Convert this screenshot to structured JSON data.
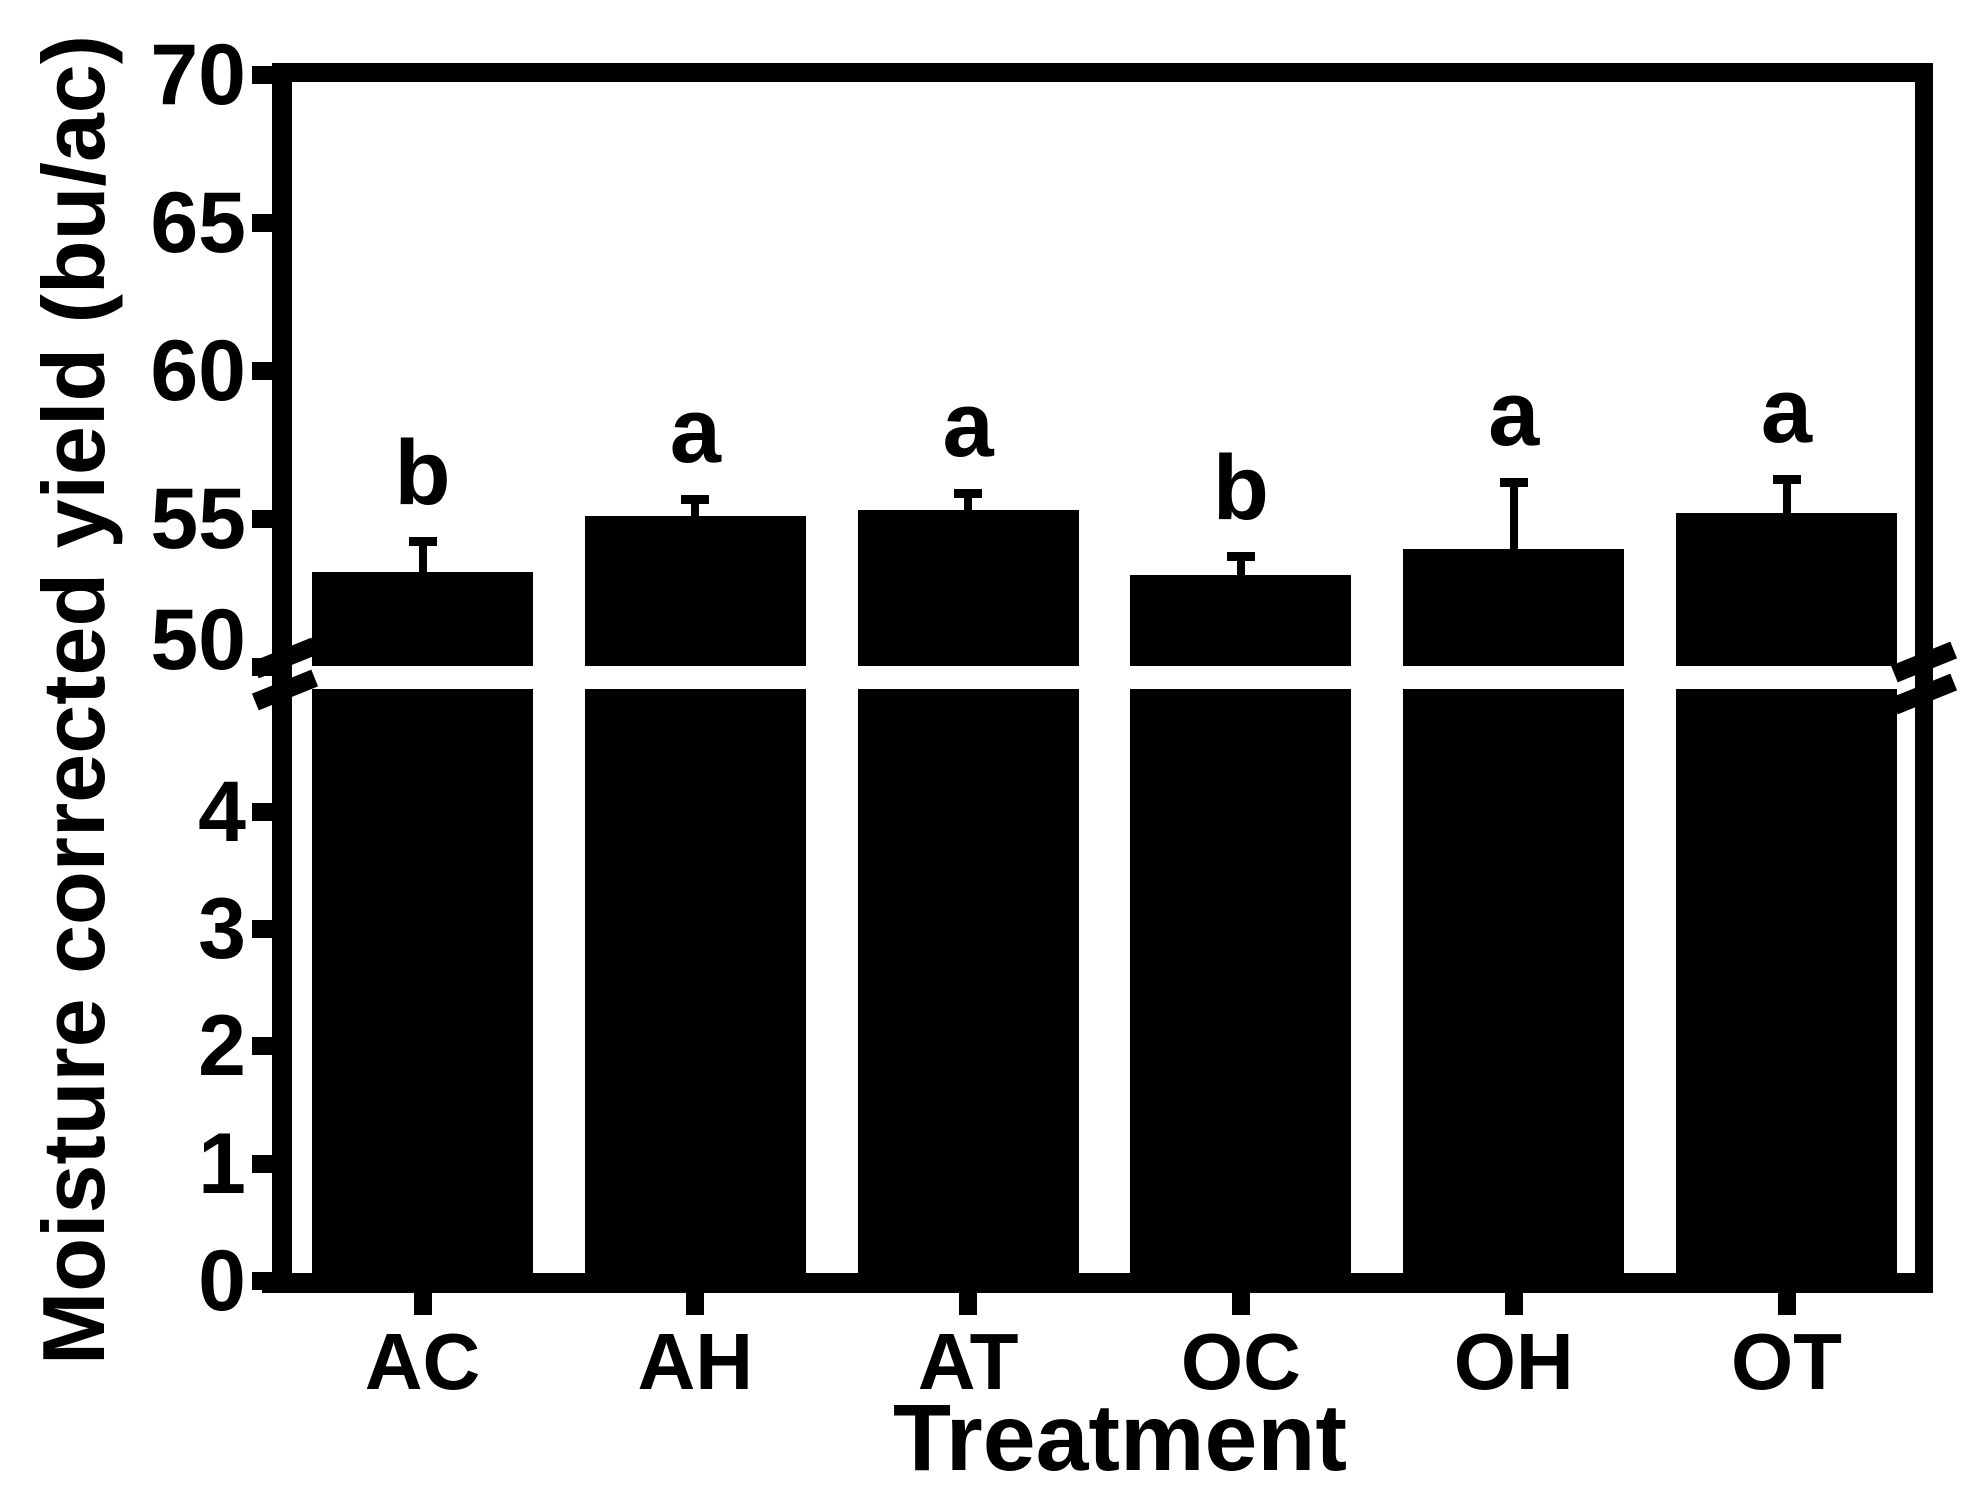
{
  "figure": {
    "background_color": "#ffffff",
    "ink_color": "#000000"
  },
  "chart_data": {
    "type": "bar",
    "title": "",
    "xlabel": "Treatment",
    "ylabel": "Moisture corrected yield (bu/ac)",
    "categories": [
      "AC",
      "AH",
      "AT",
      "OC",
      "OH",
      "OT"
    ],
    "series": [
      {
        "name": "Moisture corrected yield (bu/ac)",
        "values": [
          53.2,
          55.1,
          55.3,
          53.1,
          54.0,
          55.2
        ]
      }
    ],
    "error_plus": [
      1.2,
      0.7,
      0.7,
      0.8,
      2.4,
      1.3
    ],
    "significance_letters": [
      "b",
      "a",
      "a",
      "b",
      "a",
      "a"
    ],
    "bar_color": "#000000",
    "grid": false,
    "legend": false,
    "y_axis": {
      "broken": true,
      "lower_segment": {
        "range": [
          0,
          5
        ],
        "ticks": [
          0,
          1,
          2,
          3,
          4
        ]
      },
      "upper_segment": {
        "range": [
          50,
          70
        ],
        "ticks": [
          50,
          55,
          60,
          65,
          70
        ]
      }
    }
  }
}
